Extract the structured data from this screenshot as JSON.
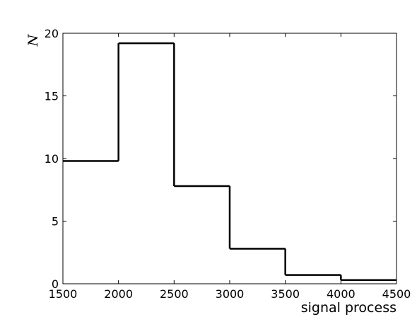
{
  "chart_data": {
    "type": "histogram-step",
    "title": "",
    "xlabel": "signal process",
    "ylabel": "N",
    "xlim": [
      1500,
      4500
    ],
    "ylim": [
      0,
      20
    ],
    "xticks": [
      1500,
      2000,
      2500,
      3000,
      3500,
      4000,
      4500
    ],
    "yticks": [
      0,
      5,
      10,
      15,
      20
    ],
    "bins": [
      {
        "x0": 1500,
        "x1": 2000,
        "value": 9.8
      },
      {
        "x0": 2000,
        "x1": 2500,
        "value": 19.2
      },
      {
        "x0": 2500,
        "x1": 3000,
        "value": 7.8
      },
      {
        "x0": 3000,
        "x1": 3500,
        "value": 2.8
      },
      {
        "x0": 3500,
        "x1": 4000,
        "value": 0.7
      },
      {
        "x0": 4000,
        "x1": 4500,
        "value": 0.3
      }
    ],
    "grid": false,
    "line_color": "#000000"
  }
}
